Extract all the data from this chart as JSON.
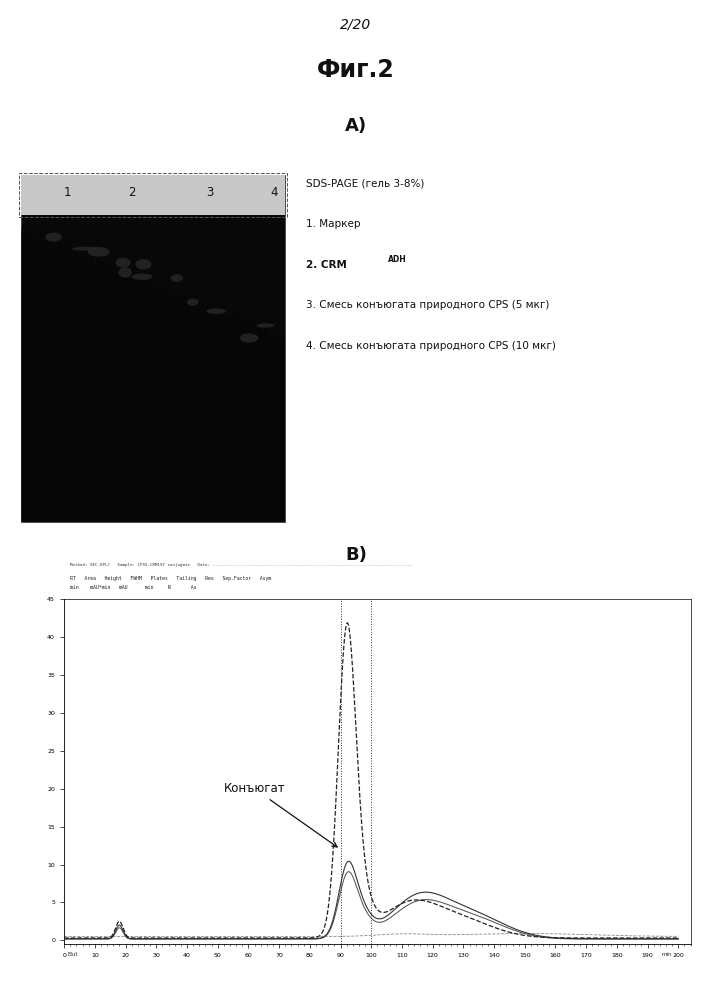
{
  "page_label": "2/20",
  "fig_title": "Фиг.2",
  "panel_a_label": "A)",
  "panel_b_label": "B)",
  "legend_line0": "SDS-PAGE (гель 3-8%)",
  "legend_line1": "1. Маркер",
  "legend_line2_pre": "2. ",
  "legend_line2_crm": "CRM",
  "legend_line2_sub": "ADH",
  "legend_line3": "3. Смесь конъюгата природного CPS (5 мкг)",
  "legend_line4": "4. Смесь конъюгата природного CPS (10 мкг)",
  "conjugate_label": "Конъюгат",
  "bg_color": "#ffffff",
  "lane_labels": [
    "1",
    "2",
    "3",
    "4"
  ]
}
